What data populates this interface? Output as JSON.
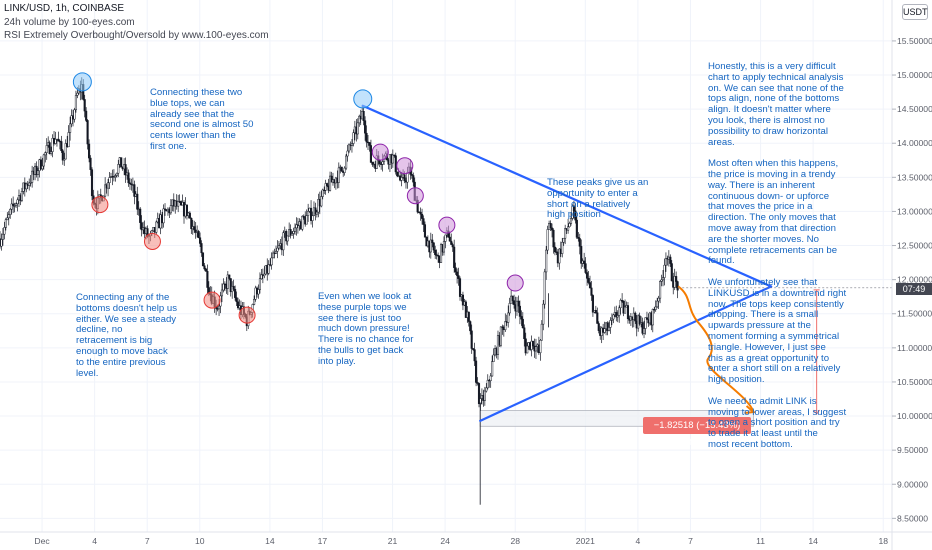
{
  "header": {
    "symbol_line": "LINK/USD, 1h, COINBASE",
    "indicator_1": "24h volume by 100-eyes.com",
    "indicator_2": "RSI Extremely Overbought/Oversold by www.100-eyes.com"
  },
  "price_axis": {
    "currency_button": "USDT",
    "current_price_tag": "07:49"
  },
  "measure_label": "−1.82518 (−15.43%) −182518",
  "notes": [
    {
      "id": "blue-tops",
      "text": "Connecting these two\nblue tops, we can\nalready see that the\nsecond one is almost 50\ncents lower than the\nfirst one."
    },
    {
      "id": "bottoms",
      "text": "Connecting any of the\nbottoms doesn't help us\neither. We see a steady\ndecline, no\nretracement is big\nenough to move back\nto the entire previous\nlevel."
    },
    {
      "id": "purple-tops",
      "text": "Even when we look at\nthese purple tops we\nsee there is just too\nmuch down pressure!\nThere is no chance for\nthe bulls to get back\ninto play."
    },
    {
      "id": "peaks",
      "text": "These peaks give us an\nopportunity to enter a\nshort on a relatively\nhigh position"
    },
    {
      "id": "analysis",
      "text": "Honestly, this is a very difficult\nchart to apply technical analysis\non. We can see that none of the\ntops align, none of the bottoms\nalign. It doesn't matter where\nyou look, there is almost no\npossibility to draw horizontal\nareas.\n\nMost often when this happens,\nthe price is moving in a trendy\nway. There is an inherent\ncontinuous down- or upforce\nthat moves the price in a\ndirection. The only moves that\nmove away from that direction\nare the shorter moves. No\ncomplete retracements can be\nfound.\n\nWe unfortunately see that\nLINKUSD is in a downtrend right\nnow. The tops keep consistently\ndropping. There is a small\nupwards pressure at the\nmoment forming a symmetrical\ntriangle. However, I just see\nthis as a great opportunity to\nenter a short still on a relatively\nhigh position.\n\nWe need to admit LINK is\nmoving to lower areas, I suggest\nto open a short position and try\nto trade it at least until the\nmost recent bottom."
    }
  ],
  "chart_data": {
    "type": "candlestick",
    "title": "LINK/USD, 1h, COINBASE",
    "timeframe": "1h",
    "x_ticks": [
      "Dec",
      "4",
      "7",
      "10",
      "14",
      "17",
      "21",
      "24",
      "28",
      "2021",
      "4",
      "7",
      "11",
      "14",
      "18"
    ],
    "y_ticks": [
      "15.50000",
      "15.00000",
      "14.50000",
      "14.00000",
      "13.50000",
      "13.00000",
      "12.50000",
      "12.00000",
      "11.50000",
      "11.00000",
      "10.50000",
      "10.00000",
      "9.50000",
      "9.00000",
      "8.50000"
    ],
    "ylim": [
      8.3,
      16.1
    ],
    "xlim_days": [
      -2.4,
      48.5
    ],
    "price_path_days": [
      [
        -2.4,
        12.6
      ],
      [
        -1.6,
        13.1
      ],
      [
        -0.9,
        13.4
      ],
      [
        -0.3,
        13.6
      ],
      [
        0.3,
        13.9
      ],
      [
        0.8,
        14.1
      ],
      [
        1.2,
        13.8
      ],
      [
        1.6,
        14.2
      ],
      [
        2.0,
        14.7
      ],
      [
        2.3,
        14.85
      ],
      [
        2.6,
        14.0
      ],
      [
        2.9,
        13.2
      ],
      [
        3.2,
        13.1
      ],
      [
        3.8,
        13.5
      ],
      [
        4.5,
        13.7
      ],
      [
        5.2,
        13.3
      ],
      [
        5.8,
        12.7
      ],
      [
        6.2,
        12.6
      ],
      [
        6.8,
        12.9
      ],
      [
        7.5,
        13.1
      ],
      [
        8.3,
        13.0
      ],
      [
        9.0,
        12.5
      ],
      [
        9.6,
        11.8
      ],
      [
        10.0,
        11.6
      ],
      [
        10.6,
        12.0
      ],
      [
        11.2,
        11.6
      ],
      [
        11.7,
        11.4
      ],
      [
        12.3,
        11.9
      ],
      [
        13.0,
        12.2
      ],
      [
        13.8,
        12.6
      ],
      [
        14.6,
        12.8
      ],
      [
        15.5,
        13.0
      ],
      [
        16.4,
        13.4
      ],
      [
        17.1,
        13.6
      ],
      [
        17.8,
        14.1
      ],
      [
        18.3,
        14.45
      ],
      [
        18.8,
        13.7
      ],
      [
        19.4,
        13.8
      ],
      [
        20.0,
        13.8
      ],
      [
        20.5,
        13.4
      ],
      [
        21.0,
        13.6
      ],
      [
        21.4,
        13.1
      ],
      [
        21.9,
        12.6
      ],
      [
        22.6,
        12.3
      ],
      [
        23.2,
        12.7
      ],
      [
        23.8,
        11.9
      ],
      [
        24.3,
        11.4
      ],
      [
        24.7,
        10.7
      ],
      [
        25.0,
        10.15
      ],
      [
        25.4,
        10.4
      ],
      [
        25.8,
        10.9
      ],
      [
        26.3,
        11.3
      ],
      [
        26.8,
        11.7
      ],
      [
        27.2,
        11.6
      ],
      [
        27.6,
        11.0
      ],
      [
        28.0,
        11.1
      ],
      [
        28.4,
        10.9
      ],
      [
        28.9,
        12.9
      ],
      [
        29.4,
        12.3
      ],
      [
        29.9,
        12.7
      ],
      [
        30.3,
        13.0
      ],
      [
        30.7,
        12.4
      ],
      [
        31.2,
        11.9
      ],
      [
        31.8,
        11.2
      ],
      [
        32.4,
        11.3
      ],
      [
        33.0,
        11.6
      ],
      [
        33.6,
        11.5
      ],
      [
        34.2,
        11.3
      ],
      [
        34.8,
        11.45
      ],
      [
        35.3,
        11.9
      ],
      [
        35.6,
        12.4
      ],
      [
        36.0,
        12.0
      ],
      [
        36.3,
        11.9
      ]
    ],
    "triangle_upper_line": [
      [
        18.3,
        14.55
      ],
      [
        41.6,
        11.9
      ]
    ],
    "triangle_lower_line": [
      [
        25.0,
        9.93
      ],
      [
        41.6,
        11.9
      ]
    ],
    "blue_tops": [
      [
        2.3,
        14.9
      ],
      [
        18.3,
        14.65
      ]
    ],
    "red_bottoms": [
      [
        3.3,
        13.1
      ],
      [
        6.3,
        12.56
      ],
      [
        9.7,
        11.7
      ],
      [
        11.7,
        11.48
      ]
    ],
    "purple_tops": [
      [
        19.3,
        13.87
      ],
      [
        20.7,
        13.67
      ],
      [
        21.3,
        13.23
      ],
      [
        23.1,
        12.8
      ],
      [
        27.0,
        11.95
      ]
    ],
    "projection_target": [
      40.6,
      10.06
    ],
    "support_zone": [
      25.0,
      40.6,
      9.85,
      10.08
    ],
    "measure_line": [
      [
        44.2,
        11.85
      ],
      [
        44.2,
        10.03
      ]
    ],
    "current_price": 11.88,
    "measure": {
      "change": -1.82518,
      "percent": -15.43
    },
    "colors": {
      "line": "#2962ff",
      "annotation": "#1565c0",
      "red_circle": "#f28b82",
      "blue_circle": "#90caf9",
      "purple_circle": "#ce93d8",
      "projection": "#f57c00",
      "measure": "#ef6f6c"
    }
  }
}
